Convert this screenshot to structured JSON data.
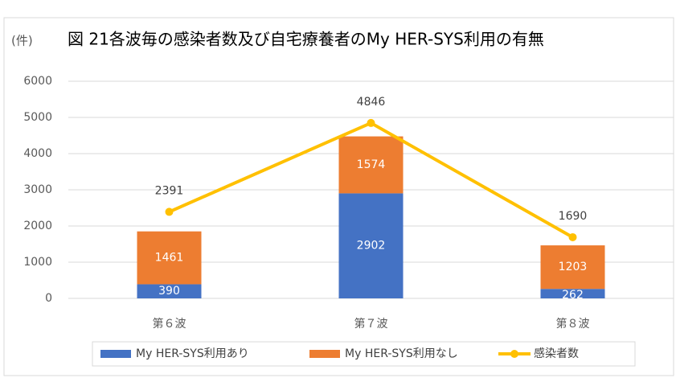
{
  "chart_data": {
    "type": "bar",
    "title": "図 21各波毎の感染者数及び自宅療養者のMy HER-SYS利用の有無",
    "y_label": "(件)",
    "categories": [
      "第６波",
      "第７波",
      "第８波"
    ],
    "series": [
      {
        "name": "My HER-SYS利用あり",
        "color": "#4472c4",
        "values": [
          390,
          2902,
          262
        ],
        "kind": "bar"
      },
      {
        "name": "My HER-SYS利用なし",
        "color": "#ed7d31",
        "values": [
          1461,
          1574,
          1203
        ],
        "kind": "bar"
      },
      {
        "name": "感染者数",
        "color": "#ffc000",
        "values": [
          2391,
          4846,
          1690
        ],
        "kind": "line"
      }
    ],
    "ylim": [
      0,
      6000
    ],
    "yticks": [
      0,
      1000,
      2000,
      3000,
      4000,
      5000,
      6000
    ],
    "grid": true,
    "legend": "bottom"
  }
}
